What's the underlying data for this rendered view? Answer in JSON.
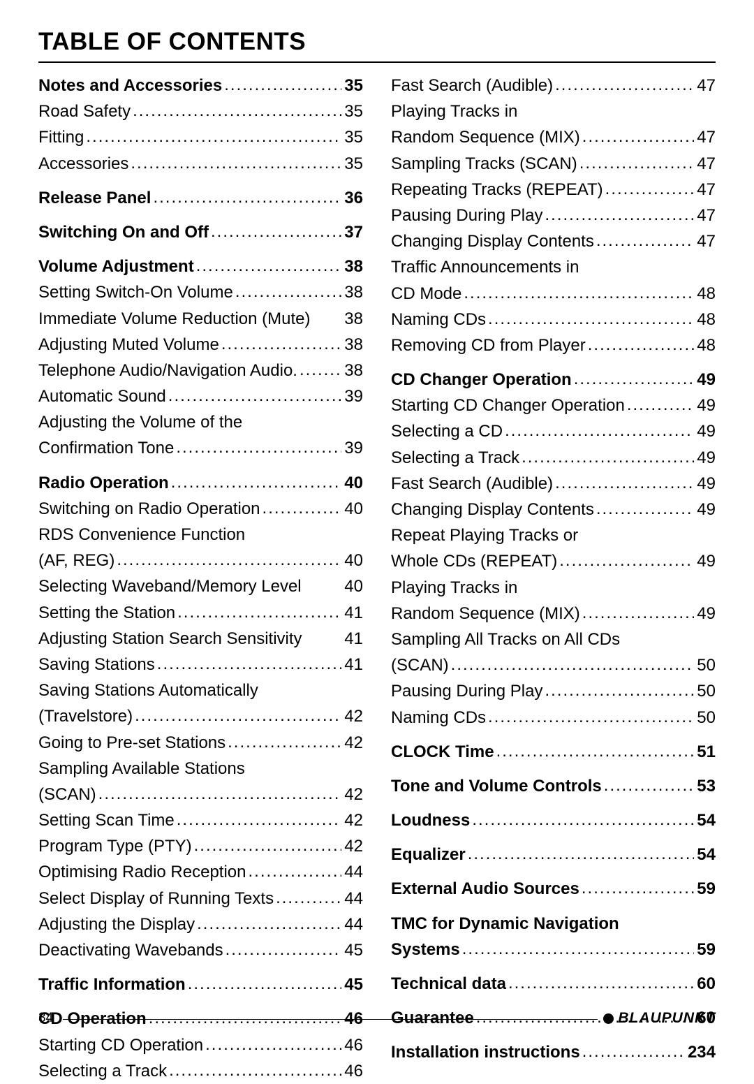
{
  "title": "TABLE OF CONTENTS",
  "page_number": "34",
  "brand": "BLAUPUNKT",
  "left": [
    {
      "t": "Notes and Accessories",
      "p": "35",
      "b": true
    },
    {
      "t": "Road Safety",
      "p": "35"
    },
    {
      "t": "Fitting",
      "p": "35"
    },
    {
      "t": "Accessories",
      "p": "35"
    },
    {
      "gap": true
    },
    {
      "t": "Release Panel",
      "p": "36",
      "b": true
    },
    {
      "gap": true
    },
    {
      "t": "Switching On and Off",
      "p": "37",
      "b": true
    },
    {
      "gap": true
    },
    {
      "t": "Volume Adjustment",
      "p": "38",
      "b": true
    },
    {
      "t": "Setting Switch-On Volume",
      "p": "38"
    },
    {
      "t": "Immediate Volume Reduction (Mute)",
      "p": "38",
      "tight": true
    },
    {
      "t": "Adjusting Muted Volume",
      "p": "38"
    },
    {
      "t": "Telephone Audio/Navigation Audio",
      "p": "38",
      "sep": "."
    },
    {
      "t": "Automatic Sound",
      "p": "39"
    },
    {
      "wrap": "Adjusting the Volume of the"
    },
    {
      "t": "Confirmation Tone",
      "p": "39"
    },
    {
      "gap": true
    },
    {
      "t": "Radio Operation",
      "p": "40",
      "b": true
    },
    {
      "t": "Switching on Radio Operation",
      "p": "40"
    },
    {
      "wrap": "RDS Convenience Function"
    },
    {
      "t": "(AF, REG)",
      "p": "40"
    },
    {
      "t": "Selecting Waveband/Memory Level",
      "p": "40",
      "tight": true
    },
    {
      "t": "Setting the Station",
      "p": "41"
    },
    {
      "t": "Adjusting Station Search Sensitivity",
      "p": "41",
      "tight": true
    },
    {
      "t": "Saving Stations",
      "p": "41"
    },
    {
      "wrap": "Saving Stations Automatically"
    },
    {
      "t": "(Travelstore)",
      "p": "42"
    },
    {
      "t": "Going to Pre-set Stations",
      "p": "42"
    },
    {
      "wrap": "Sampling Available Stations"
    },
    {
      "t": "(SCAN)",
      "p": "42"
    },
    {
      "t": "Setting Scan Time",
      "p": "42"
    },
    {
      "t": "Program Type (PTY)",
      "p": "42"
    },
    {
      "t": "Optimising Radio Reception",
      "p": "44"
    },
    {
      "t": "Select Display of Running Texts",
      "p": "44"
    },
    {
      "t": "Adjusting the Display",
      "p": "44"
    },
    {
      "t": "Deactivating Wavebands",
      "p": "45"
    },
    {
      "gap": true
    },
    {
      "t": "Traffic Information",
      "p": "45",
      "b": true
    },
    {
      "gap": true
    },
    {
      "t": "CD Operation",
      "p": "46",
      "b": true
    },
    {
      "t": "Starting CD Operation",
      "p": "46"
    },
    {
      "t": "Selecting a Track",
      "p": "46"
    }
  ],
  "right": [
    {
      "t": "Fast Search (Audible)",
      "p": "47"
    },
    {
      "wrap": "Playing Tracks in"
    },
    {
      "t": "Random Sequence (MIX)",
      "p": "47"
    },
    {
      "t": "Sampling Tracks (SCAN)",
      "p": "47"
    },
    {
      "t": "Repeating Tracks (REPEAT)",
      "p": "47"
    },
    {
      "t": "Pausing During Play",
      "p": "47"
    },
    {
      "t": "Changing Display Contents",
      "p": "47"
    },
    {
      "wrap": "Traffic Announcements in"
    },
    {
      "t": "CD Mode",
      "p": "48"
    },
    {
      "t": "Naming CDs",
      "p": "48"
    },
    {
      "t": "Removing CD from Player",
      "p": "48"
    },
    {
      "gap": true
    },
    {
      "t": "CD Changer Operation",
      "p": "49",
      "b": true
    },
    {
      "t": "Starting CD Changer Operation",
      "p": "49"
    },
    {
      "t": "Selecting a CD",
      "p": "49"
    },
    {
      "t": "Selecting a Track",
      "p": "49"
    },
    {
      "t": "Fast Search (Audible)",
      "p": "49"
    },
    {
      "t": "Changing Display Contents",
      "p": "49"
    },
    {
      "wrap": "Repeat Playing Tracks or"
    },
    {
      "t": "Whole CDs (REPEAT)",
      "p": "49"
    },
    {
      "wrap": "Playing Tracks in"
    },
    {
      "t": "Random Sequence (MIX)",
      "p": "49"
    },
    {
      "wrap": "Sampling All Tracks on All CDs"
    },
    {
      "t": "(SCAN)",
      "p": "50"
    },
    {
      "t": "Pausing During Play",
      "p": "50"
    },
    {
      "t": "Naming CDs",
      "p": "50"
    },
    {
      "gap": true
    },
    {
      "t": "CLOCK Time",
      "p": "51",
      "b": true
    },
    {
      "gap": true
    },
    {
      "t": "Tone and Volume Controls",
      "p": "53",
      "b": true
    },
    {
      "gap": true
    },
    {
      "t": "Loudness",
      "p": "54",
      "b": true
    },
    {
      "gap": true
    },
    {
      "t": "Equalizer",
      "p": "54",
      "b": true
    },
    {
      "gap": true
    },
    {
      "t": "External Audio Sources",
      "p": "59",
      "b": true
    },
    {
      "gap": true
    },
    {
      "wrap": "TMC for Dynamic Navigation",
      "b": true
    },
    {
      "t": "Systems",
      "p": "59",
      "b": true
    },
    {
      "gap": true
    },
    {
      "t": "Technical data",
      "p": "60",
      "b": true
    },
    {
      "gap": true
    },
    {
      "t": "Guarantee",
      "p": "60",
      "b": true
    },
    {
      "gap": true
    },
    {
      "t": "Installation instructions",
      "p": "234",
      "b": true
    }
  ]
}
